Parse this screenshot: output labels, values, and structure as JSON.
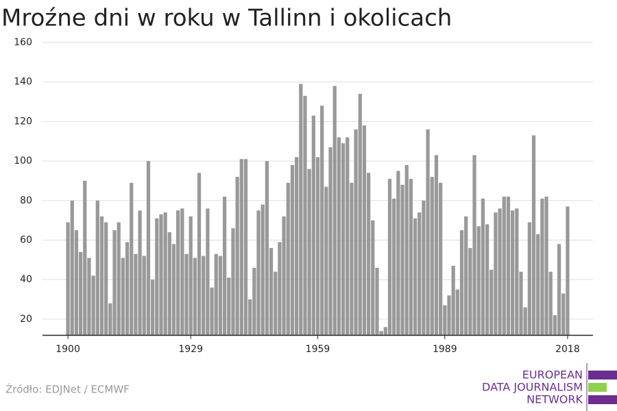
{
  "chart_data": {
    "type": "bar",
    "title": "Mroźne dni w roku w Tallinn i okolicach",
    "x": [
      1900,
      1901,
      1902,
      1903,
      1904,
      1905,
      1906,
      1907,
      1908,
      1909,
      1910,
      1911,
      1912,
      1913,
      1914,
      1915,
      1916,
      1917,
      1918,
      1919,
      1920,
      1921,
      1922,
      1923,
      1924,
      1925,
      1926,
      1927,
      1928,
      1929,
      1930,
      1931,
      1932,
      1933,
      1934,
      1935,
      1936,
      1937,
      1938,
      1939,
      1940,
      1941,
      1942,
      1943,
      1944,
      1945,
      1946,
      1947,
      1948,
      1949,
      1950,
      1951,
      1952,
      1953,
      1954,
      1955,
      1956,
      1957,
      1958,
      1959,
      1960,
      1961,
      1962,
      1963,
      1964,
      1965,
      1966,
      1967,
      1968,
      1969,
      1970,
      1971,
      1972,
      1973,
      1974,
      1975,
      1976,
      1977,
      1978,
      1979,
      1980,
      1981,
      1982,
      1983,
      1984,
      1985,
      1986,
      1987,
      1988,
      1989,
      1990,
      1991,
      1992,
      1993,
      1994,
      1995,
      1996,
      1997,
      1998,
      1999,
      2000,
      2001,
      2002,
      2003,
      2004,
      2005,
      2006,
      2007,
      2008,
      2009,
      2010,
      2011,
      2012,
      2013,
      2014,
      2015,
      2016,
      2017,
      2018
    ],
    "values": [
      69,
      80,
      65,
      54,
      90,
      51,
      42,
      80,
      72,
      69,
      28,
      65,
      69,
      51,
      59,
      89,
      53,
      75,
      52,
      100,
      40,
      71,
      73,
      74,
      64,
      58,
      75,
      76,
      53,
      72,
      51,
      94,
      52,
      76,
      36,
      53,
      52,
      82,
      41,
      66,
      92,
      101,
      101,
      30,
      46,
      75,
      78,
      100,
      56,
      44,
      59,
      72,
      89,
      98,
      102,
      139,
      133,
      96,
      123,
      102,
      128,
      87,
      107,
      138,
      112,
      109,
      112,
      89,
      116,
      134,
      118,
      94,
      70,
      46,
      14,
      16,
      91,
      81,
      95,
      88,
      98,
      91,
      71,
      74,
      80,
      116,
      92,
      103,
      89,
      27,
      32,
      47,
      35,
      65,
      72,
      56,
      103,
      67,
      81,
      68,
      45,
      74,
      76,
      82,
      82,
      75,
      76,
      44,
      26,
      69,
      113,
      63,
      81,
      82,
      44,
      22,
      58,
      33,
      77
    ],
    "color": "#999999",
    "xlim": [
      1894,
      2024
    ],
    "xticks": [
      1900,
      1929,
      1959,
      1989,
      2018
    ],
    "ylim": [
      12,
      160
    ],
    "yticks": [
      20,
      40,
      60,
      80,
      100,
      120,
      140,
      160
    ],
    "grid": true
  },
  "source": "Źródło: EDJNet / ECMWF",
  "logo": [
    "EUROPEAN",
    "DATA JOURNALISM",
    "NETWORK"
  ]
}
